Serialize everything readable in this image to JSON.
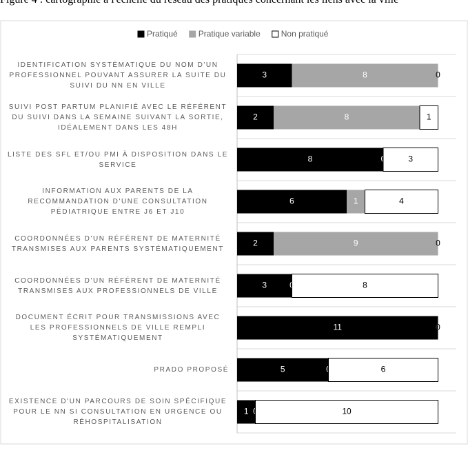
{
  "chart_data": {
    "type": "stacked_barh",
    "title": "Figure 4 : cartographie à l'échelle du réseau des pratiques concernant les liens avec la ville",
    "categories": [
      "IDENTIFICATION SYSTÉMATIQUE DU NOM D'UN PROFESSIONNEL POUVANT ASSURER LA SUITE DU SUIVI DU NN EN VILLE",
      "SUIVI POST PARTUM PLANIFIÉ AVEC LE RÉFÉRENT DU SUIVI DANS LA SEMAINE SUIVANT LA SORTIE, IDÉALEMENT DANS LES 48H",
      "LISTE DES SFL ET/OU PMI À DISPOSITION DANS LE SERVICE",
      "INFORMATION AUX PARENTS DE LA RECOMMANDATION D'UNE CONSULTATION PÉDIATRIQUE ENTRE J6 ET J10",
      "COORDONNÉES D'UN RÉFÉRENT DE MATERNITÉ TRANSMISES AUX PARENTS SYSTÉMATIQUEMENT",
      "COORDONNÉES D'UN RÉFÉRENT DE MATERNITÉ TRANSMISES AUX PROFESSIONNELS DE VILLE",
      "DOCUMENT ÉCRIT POUR TRANSMISSIONS AVEC LES PROFESSIONNELS DE VILLE REMPLI SYSTÉMATIQUEMENT",
      "PRADO PROPOSÉ",
      "EXISTENCE D'UN PARCOURS DE SOIN SPÉCIFIQUE POUR LE NN SI CONSULTATION EN URGENCE OU RÉHOSPITALISATION"
    ],
    "series": [
      {
        "name": "Pratiqué",
        "color": "#000000",
        "values": [
          3,
          2,
          8,
          6,
          2,
          3,
          11,
          5,
          1
        ]
      },
      {
        "name": "Pratique variable",
        "color": "#a6a6a6",
        "values": [
          8,
          8,
          0,
          1,
          9,
          0,
          0,
          0,
          0
        ]
      },
      {
        "name": "Non pratiqué",
        "color": "#ffffff",
        "values": [
          0,
          1,
          3,
          4,
          0,
          8,
          0,
          6,
          10
        ]
      }
    ],
    "xlim": [
      0,
      12
    ],
    "legend": "top",
    "grid": true
  }
}
